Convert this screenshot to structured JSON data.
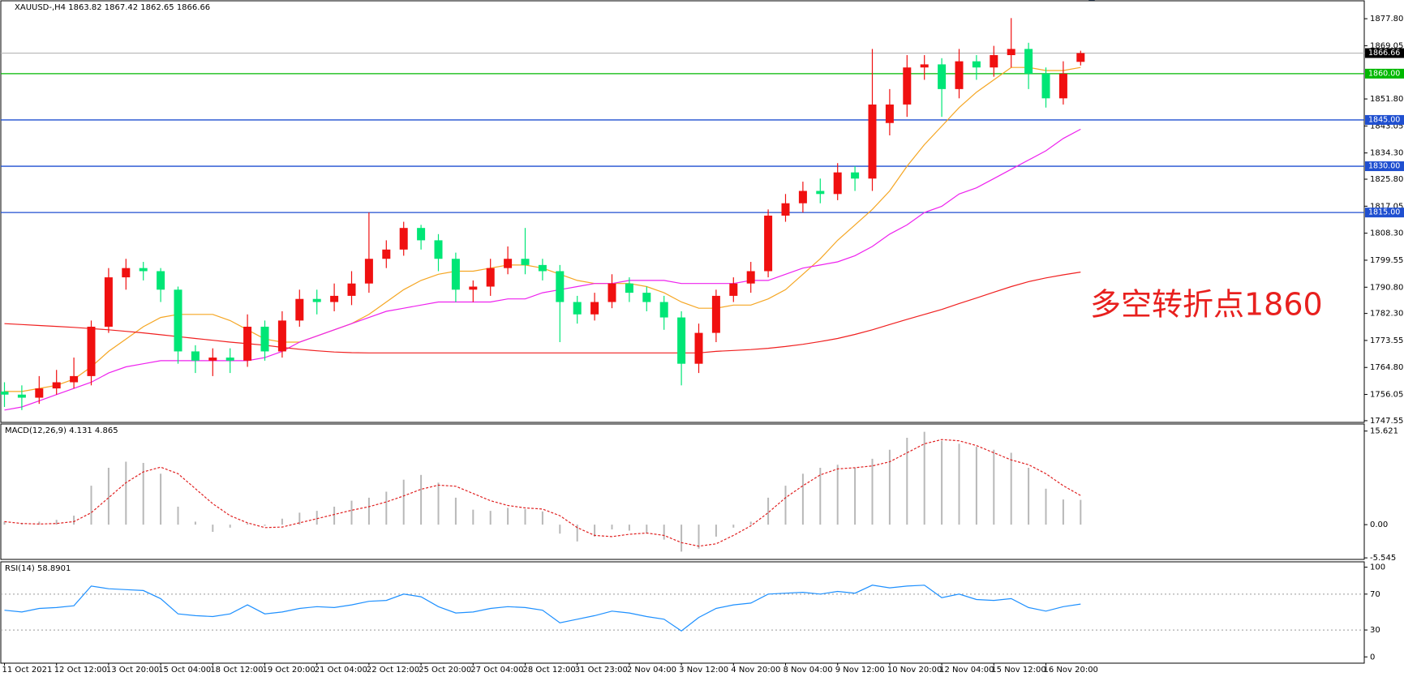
{
  "chart_data": [
    {
      "type": "candlestick",
      "title": "XAUUSD-,H4  1863.82 1867.42 1862.65 1866.66",
      "categories": [
        "11 Oct 2021",
        null,
        null,
        "12 Oct 12:00",
        null,
        null,
        "13 Oct 20:00",
        null,
        null,
        "15 Oct 04:00",
        null,
        null,
        "18 Oct 12:00",
        null,
        null,
        "19 Oct 20:00",
        null,
        null,
        "21 Oct 04:00",
        null,
        null,
        "22 Oct 12:00",
        null,
        null,
        "25 Oct 20:00",
        null,
        null,
        "27 Oct 04:00",
        null,
        null,
        "28 Oct 12:00",
        null,
        null,
        "31 Oct 23:00",
        null,
        null,
        "2 Nov 04:00",
        null,
        null,
        "3 Nov 12:00",
        null,
        null,
        "4 Nov 20:00",
        null,
        null,
        "8 Nov 04:00",
        null,
        null,
        "9 Nov 12:00",
        null,
        null,
        "10 Nov 20:00",
        null,
        null,
        "12 Nov 04:00",
        null,
        null,
        "15 Nov 12:00",
        null,
        null,
        "16 Nov 20:00",
        null,
        null
      ],
      "open": [
        1757,
        1756,
        1755,
        1758,
        1760,
        1762,
        1778,
        1794,
        1797,
        1796,
        1790,
        1770,
        1767,
        1768,
        1767,
        1778,
        1770,
        1780,
        1787,
        1786,
        1788,
        1792,
        1800,
        1803,
        1810,
        1806,
        1800,
        1790,
        1791,
        1797,
        1800,
        1798,
        1796,
        1786,
        1782,
        1786,
        1792,
        1789,
        1786,
        1781,
        1766,
        1776,
        1788,
        1792,
        1796,
        1814,
        1818,
        1822,
        1821,
        1828,
        1826,
        1844,
        1850,
        1862,
        1863,
        1855,
        1864,
        1862,
        1866,
        1868,
        1860,
        1852,
        1863.82
      ],
      "high": [
        1760,
        1759,
        1762,
        1764,
        1768,
        1780,
        1797,
        1800,
        1799,
        1797,
        1791,
        1772,
        1771,
        1771,
        1782,
        1780,
        1783,
        1790,
        1790,
        1792,
        1796,
        1815,
        1806,
        1812,
        1811,
        1808,
        1802,
        1793,
        1800,
        1804,
        1810,
        1800,
        1798,
        1788,
        1789,
        1795,
        1794,
        1791,
        1788,
        1783,
        1779,
        1790,
        1794,
        1799,
        1816,
        1821,
        1825,
        1826,
        1831,
        1830,
        1868,
        1855,
        1866,
        1866,
        1865,
        1868,
        1866,
        1869,
        1878,
        1870,
        1862,
        1864,
        1867.42
      ],
      "low": [
        1752,
        1751,
        1753,
        1756,
        1758,
        1759,
        1776,
        1790,
        1793,
        1786,
        1766,
        1763,
        1762,
        1763,
        1765,
        1767,
        1768,
        1778,
        1782,
        1783,
        1785,
        1789,
        1797,
        1801,
        1803,
        1796,
        1786,
        1786,
        1788,
        1795,
        1795,
        1793,
        1773,
        1779,
        1780,
        1784,
        1786,
        1783,
        1777,
        1759,
        1763,
        1773,
        1786,
        1789,
        1794,
        1812,
        1815,
        1818,
        1819,
        1822,
        1822,
        1840,
        1846,
        1858,
        1846,
        1852,
        1858,
        1859,
        1862,
        1855,
        1849,
        1850,
        1862.65
      ],
      "close": [
        1756,
        1755,
        1758,
        1760,
        1762,
        1778,
        1794,
        1797,
        1796,
        1790,
        1770,
        1767,
        1768,
        1767,
        1778,
        1770,
        1780,
        1787,
        1786,
        1788,
        1792,
        1800,
        1803,
        1810,
        1806,
        1800,
        1790,
        1791,
        1797,
        1800,
        1798,
        1796,
        1786,
        1782,
        1786,
        1792,
        1789,
        1786,
        1781,
        1766,
        1776,
        1788,
        1792,
        1796,
        1814,
        1818,
        1822,
        1821,
        1828,
        1826,
        1850,
        1850,
        1862,
        1863,
        1855,
        1864,
        1862,
        1866,
        1868,
        1860,
        1852,
        1860,
        1866.66
      ],
      "up_color": "#f01010",
      "down_color": "#00e676",
      "series": [
        {
          "color": "#f5a623",
          "values": [
            1757,
            1757,
            1758,
            1759,
            1761,
            1765,
            1770,
            1774,
            1778,
            1781,
            1782,
            1782,
            1782,
            1780,
            1777,
            1774,
            1773,
            1773,
            1775,
            1777,
            1779,
            1782,
            1786,
            1790,
            1793,
            1795,
            1796,
            1796,
            1797,
            1798,
            1798,
            1797,
            1795,
            1793,
            1792,
            1792,
            1792,
            1791,
            1789,
            1786,
            1784,
            1784,
            1785,
            1785,
            1787,
            1790,
            1795,
            1800,
            1806,
            1811,
            1816,
            1822,
            1830,
            1837,
            1843,
            1849,
            1854,
            1858,
            1862,
            1862,
            1861,
            1861,
            1862
          ]
        },
        {
          "color": "#ee22ee",
          "values": [
            1751,
            1752,
            1754,
            1756,
            1758,
            1760,
            1763,
            1765,
            1766,
            1767,
            1767,
            1767,
            1767,
            1767,
            1767,
            1768,
            1770,
            1773,
            1775,
            1777,
            1779,
            1781,
            1783,
            1784,
            1785,
            1786,
            1786,
            1786,
            1786,
            1787,
            1787,
            1789,
            1790,
            1791,
            1792,
            1792,
            1793,
            1793,
            1793,
            1792,
            1792,
            1792,
            1792,
            1793,
            1793,
            1795,
            1797,
            1798,
            1799,
            1801,
            1804,
            1808,
            1811,
            1815,
            1817,
            1821,
            1823,
            1826,
            1829,
            1832,
            1835,
            1839,
            1842
          ]
        },
        {
          "color": "#f02020",
          "values": [
            1779,
            1778.7,
            1778.4,
            1778.1,
            1777.8,
            1777.4,
            1777,
            1776.5,
            1776,
            1775.4,
            1774.8,
            1774.2,
            1773.6,
            1773,
            1772.5,
            1772,
            1771.3,
            1770.7,
            1770.2,
            1769.8,
            1769.6,
            1769.5,
            1769.5,
            1769.5,
            1769.5,
            1769.5,
            1769.5,
            1769.5,
            1769.5,
            1769.5,
            1769.5,
            1769.5,
            1769.5,
            1769.5,
            1769.5,
            1769.5,
            1769.5,
            1769.5,
            1769.5,
            1769.5,
            1769.5,
            1770,
            1770.3,
            1770.6,
            1771,
            1771.6,
            1772.3,
            1773.2,
            1774.2,
            1775.5,
            1777,
            1778.7,
            1780.4,
            1782,
            1783.6,
            1785.5,
            1787.3,
            1789.2,
            1791,
            1792.6,
            1793.8,
            1794.8,
            1795.7
          ]
        }
      ],
      "ylim": [
        1747,
        1883.6
      ],
      "yticks": [
        {
          "value": 1747.55,
          "label": "1747.55"
        },
        {
          "value": 1756.05,
          "label": "1756.05"
        },
        {
          "value": 1764.8,
          "label": "1764.80"
        },
        {
          "value": 1773.55,
          "label": "1773.55"
        },
        {
          "value": 1782.3,
          "label": "1782.30"
        },
        {
          "value": 1790.8,
          "label": "1790.80"
        },
        {
          "value": 1799.55,
          "label": "1799.55"
        },
        {
          "value": 1808.3,
          "label": "1808.30"
        },
        {
          "value": 1817.05,
          "label": "1817.05"
        },
        {
          "value": 1825.8,
          "label": "1825.80"
        },
        {
          "value": 1834.3,
          "label": "1834.30"
        },
        {
          "value": 1843.05,
          "label": "1843.05"
        },
        {
          "value": 1851.8,
          "label": "1851.80"
        },
        {
          "value": 1869.05,
          "label": "1869.05"
        },
        {
          "value": 1877.8,
          "label": "1877.80"
        }
      ],
      "levels": [
        {
          "value": 1860,
          "label": "1860.00",
          "color": "#00b800"
        },
        {
          "value": 1845,
          "label": "1845.00",
          "color": "#1f4fd0"
        },
        {
          "value": 1830,
          "label": "1830.00",
          "color": "#1f4fd0"
        },
        {
          "value": 1815,
          "label": "1815.00",
          "color": "#1f4fd0"
        }
      ],
      "last_price": {
        "value": 1866.66,
        "label": "1866.66",
        "color": "#b0b0b0"
      },
      "annotation": {
        "text": "多空转折点1860",
        "color": "#e8201e"
      }
    },
    {
      "type": "macd",
      "title": "MACD(12,26,9) 4.131 4.865",
      "color": "#b8b8b8",
      "values": [
        0.5,
        0.3,
        0.5,
        0.8,
        1.5,
        6.5,
        9.5,
        10.5,
        10.3,
        8.5,
        3,
        0.5,
        -1.2,
        -0.5,
        0.2,
        -0.2,
        1,
        2,
        2.3,
        3,
        4,
        4.5,
        5.5,
        7.5,
        8.3,
        7,
        4.5,
        2.5,
        2.3,
        2.8,
        2.6,
        2.2,
        -1.5,
        -2.8,
        -2,
        -0.8,
        -1,
        -1.5,
        -2.5,
        -4.5,
        -4,
        -2,
        -0.5,
        0.5,
        4.5,
        6.5,
        8.5,
        9.5,
        10,
        9.5,
        11,
        12.5,
        14.5,
        15.5,
        14,
        13.5,
        13,
        12.5,
        12,
        9.5,
        6,
        4.2,
        4.131
      ],
      "series": [
        {
          "color": "#e02020",
          "values": [
            0.5,
            0.2,
            0.1,
            0.2,
            0.5,
            2,
            4.5,
            7,
            8.8,
            9.6,
            8.5,
            6,
            3.5,
            1.5,
            0.3,
            -0.5,
            -0.4,
            0.3,
            1,
            1.7,
            2.4,
            3,
            3.8,
            4.8,
            5.9,
            6.6,
            6.4,
            5.2,
            4,
            3.2,
            2.8,
            2.6,
            1.5,
            -0.5,
            -1.8,
            -2,
            -1.6,
            -1.4,
            -1.8,
            -3,
            -3.6,
            -3.2,
            -1.8,
            -0.2,
            2,
            4.5,
            6.5,
            8.3,
            9.3,
            9.5,
            9.8,
            10.5,
            12,
            13.5,
            14.2,
            14,
            13.2,
            12,
            10.8,
            10,
            8.5,
            6.5,
            4.865
          ]
        }
      ],
      "ylim": [
        -5.8,
        16.8
      ],
      "yticks": [
        15.621,
        {
          "value": 0,
          "label": "0.00"
        },
        -5.545
      ]
    },
    {
      "type": "line",
      "title": "RSI(14) 58.8901",
      "color": "#1e90ff",
      "values": [
        52,
        50,
        54,
        55,
        57,
        79,
        76,
        75,
        74,
        65,
        48,
        46,
        45,
        48,
        58,
        48,
        50,
        54,
        56,
        55,
        58,
        62,
        63,
        70,
        67,
        56,
        49,
        50,
        54,
        56,
        55,
        52,
        38,
        42,
        46,
        51,
        49,
        45,
        42,
        29,
        44,
        54,
        58,
        60,
        70,
        71,
        72,
        70,
        73,
        71,
        80,
        77,
        79,
        80,
        66,
        70,
        64,
        63,
        65,
        55,
        51,
        56,
        58.8901
      ],
      "ylim": [
        -7,
        106
      ],
      "yticks": [
        100,
        70,
        30,
        0
      ],
      "levels": [
        {
          "value": 70
        },
        {
          "value": 30
        }
      ]
    }
  ]
}
